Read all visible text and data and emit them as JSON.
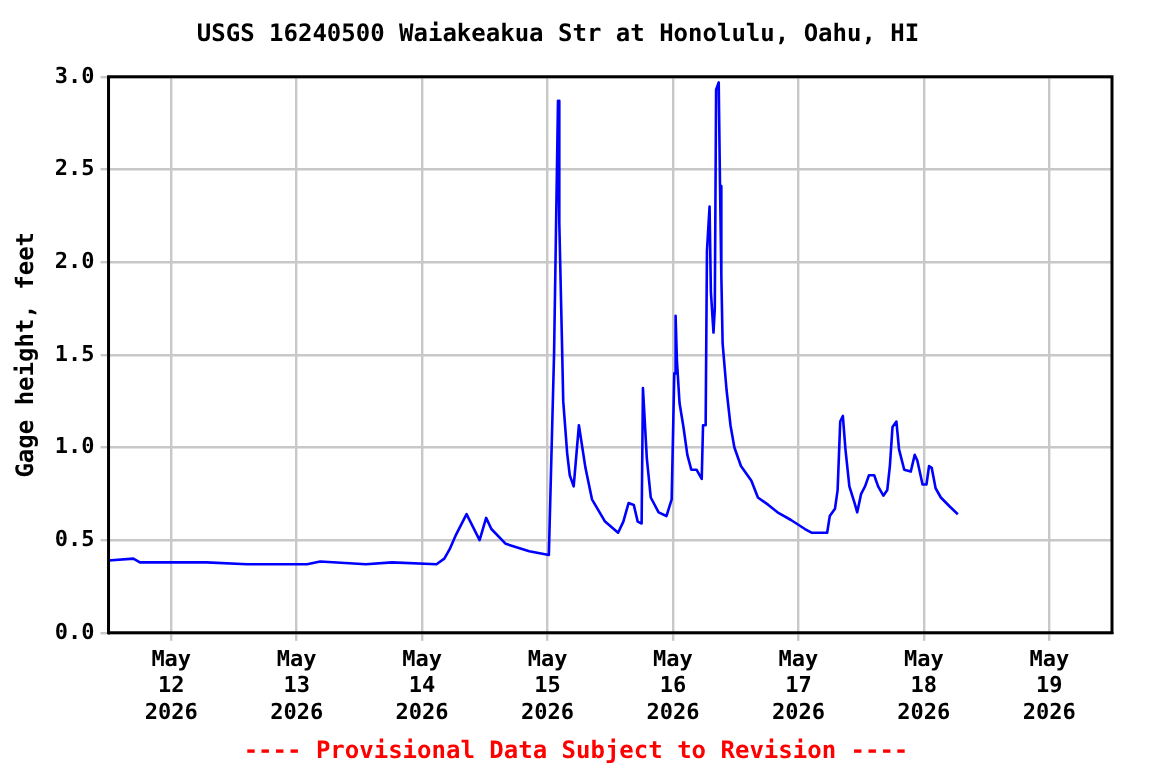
{
  "chart_data": {
    "type": "line",
    "title": "USGS 16240500 Waiakeakua Str at Honolulu, Oahu, HI",
    "ylabel": "Gage height, feet",
    "annotations": [
      "---- Provisional Data Subject to Revision ----"
    ],
    "x": [
      "2026-05-11T12:00",
      "2026-05-11T16:45",
      "2026-05-11T18:00",
      "2026-05-12T06:45",
      "2026-05-12T14:30",
      "2026-05-13T02:00",
      "2026-05-13T04:30",
      "2026-05-13T13:15",
      "2026-05-13T18:15",
      "2026-05-14T02:45",
      "2026-05-14T04:15",
      "2026-05-14T05:15",
      "2026-05-14T06:30",
      "2026-05-14T08:30",
      "2026-05-14T11:00",
      "2026-05-14T12:15",
      "2026-05-14T13:15",
      "2026-05-14T16:00",
      "2026-05-14T20:30",
      "2026-05-15T00:15",
      "2026-05-15T01:15",
      "2026-05-15T02:00",
      "2026-05-15T02:15",
      "2026-05-15T02:45",
      "2026-05-15T03:00",
      "2026-05-15T03:45",
      "2026-05-15T04:15",
      "2026-05-15T05:00",
      "2026-05-15T06:00",
      "2026-05-15T07:15",
      "2026-05-15T08:30",
      "2026-05-15T11:00",
      "2026-05-15T13:30",
      "2026-05-15T14:30",
      "2026-05-15T15:30",
      "2026-05-15T16:30",
      "2026-05-15T17:15",
      "2026-05-15T18:00",
      "2026-05-15T18:15",
      "2026-05-15T19:00",
      "2026-05-15T19:45",
      "2026-05-15T21:15",
      "2026-05-15T22:45",
      "2026-05-15T23:45",
      "2026-05-16T00:15",
      "2026-05-16T00:30",
      "2026-05-16T00:45",
      "2026-05-16T01:15",
      "2026-05-16T02:00",
      "2026-05-16T02:45",
      "2026-05-16T03:30",
      "2026-05-16T04:30",
      "2026-05-16T05:30",
      "2026-05-16T05:45",
      "2026-05-16T06:15",
      "2026-05-16T06:30",
      "2026-05-16T07:00",
      "2026-05-16T07:15",
      "2026-05-16T07:45",
      "2026-05-16T08:00",
      "2026-05-16T08:15",
      "2026-05-16T08:45",
      "2026-05-16T09:00",
      "2026-05-16T09:15",
      "2026-05-16T09:30",
      "2026-05-16T10:15",
      "2026-05-16T11:00",
      "2026-05-16T11:45",
      "2026-05-16T13:00",
      "2026-05-16T15:00",
      "2026-05-16T16:15",
      "2026-05-16T18:15",
      "2026-05-16T20:00",
      "2026-05-16T22:30",
      "2026-05-17T01:15",
      "2026-05-17T02:30",
      "2026-05-17T05:30",
      "2026-05-17T06:00",
      "2026-05-17T07:00",
      "2026-05-17T07:30",
      "2026-05-17T08:00",
      "2026-05-17T08:30",
      "2026-05-17T09:00",
      "2026-05-17T09:45",
      "2026-05-17T10:45",
      "2026-05-17T11:15",
      "2026-05-17T12:00",
      "2026-05-17T12:45",
      "2026-05-17T13:30",
      "2026-05-17T14:30",
      "2026-05-17T15:15",
      "2026-05-17T16:15",
      "2026-05-17T17:00",
      "2026-05-17T17:30",
      "2026-05-17T18:00",
      "2026-05-17T18:45",
      "2026-05-17T19:15",
      "2026-05-17T20:15",
      "2026-05-17T21:30",
      "2026-05-17T22:15",
      "2026-05-17T22:45",
      "2026-05-17T23:45",
      "2026-05-18T00:30",
      "2026-05-18T01:00",
      "2026-05-18T01:30",
      "2026-05-18T02:15",
      "2026-05-18T03:15",
      "2026-05-18T05:00",
      "2026-05-18T06:30"
    ],
    "series": [
      {
        "color": "#0000ff",
        "values": [
          0.39,
          0.4,
          0.38,
          0.38,
          0.37,
          0.37,
          0.385,
          0.37,
          0.38,
          0.37,
          0.4,
          0.45,
          0.53,
          0.64,
          0.5,
          0.62,
          0.56,
          0.48,
          0.44,
          0.42,
          1.51,
          2.87,
          2.21,
          1.58,
          1.25,
          0.97,
          0.85,
          0.79,
          1.12,
          0.89,
          0.72,
          0.6,
          0.54,
          0.6,
          0.7,
          0.69,
          0.6,
          0.59,
          1.32,
          0.94,
          0.73,
          0.65,
          0.63,
          0.72,
          1.4,
          1.71,
          1.47,
          1.24,
          1.11,
          0.96,
          0.88,
          0.88,
          0.83,
          1.12,
          1.12,
          2.06,
          2.3,
          1.84,
          1.62,
          1.75,
          2.93,
          2.97,
          2.41,
          1.93,
          1.56,
          1.31,
          1.12,
          1.0,
          0.9,
          0.82,
          0.73,
          0.69,
          0.65,
          0.61,
          0.56,
          0.54,
          0.54,
          0.63,
          0.67,
          0.77,
          1.14,
          1.17,
          0.99,
          0.79,
          0.7,
          0.65,
          0.75,
          0.79,
          0.85,
          0.85,
          0.79,
          0.74,
          0.77,
          0.9,
          1.11,
          1.14,
          0.99,
          0.88,
          0.87,
          0.96,
          0.93,
          0.8,
          0.8,
          0.9,
          0.89,
          0.78,
          0.73,
          0.68,
          0.64
        ]
      }
    ],
    "xlim": [
      "2026-05-11T12:00",
      "2026-05-19T12:00"
    ],
    "xticks": [
      {
        "value": "2026-05-12",
        "label": "May 12 2026"
      },
      {
        "value": "2026-05-13",
        "label": "May 13 2026"
      },
      {
        "value": "2026-05-14",
        "label": "May 14 2026"
      },
      {
        "value": "2026-05-15",
        "label": "May 15 2026"
      },
      {
        "value": "2026-05-16",
        "label": "May 16 2026"
      },
      {
        "value": "2026-05-17",
        "label": "May 17 2026"
      },
      {
        "value": "2026-05-18",
        "label": "May 18 2026"
      },
      {
        "value": "2026-05-19",
        "label": "May 19 2026"
      }
    ],
    "ylim": [
      0,
      3
    ],
    "yticks": [
      {
        "value": 0,
        "label": "0.0"
      },
      0.5,
      {
        "value": 1,
        "label": "1.0"
      },
      1.5,
      {
        "value": 2,
        "label": "2.0"
      },
      2.5,
      {
        "value": 3,
        "label": "3.0"
      }
    ],
    "grid": true,
    "legend": false,
    "marker": "none",
    "line_style": "solid"
  }
}
